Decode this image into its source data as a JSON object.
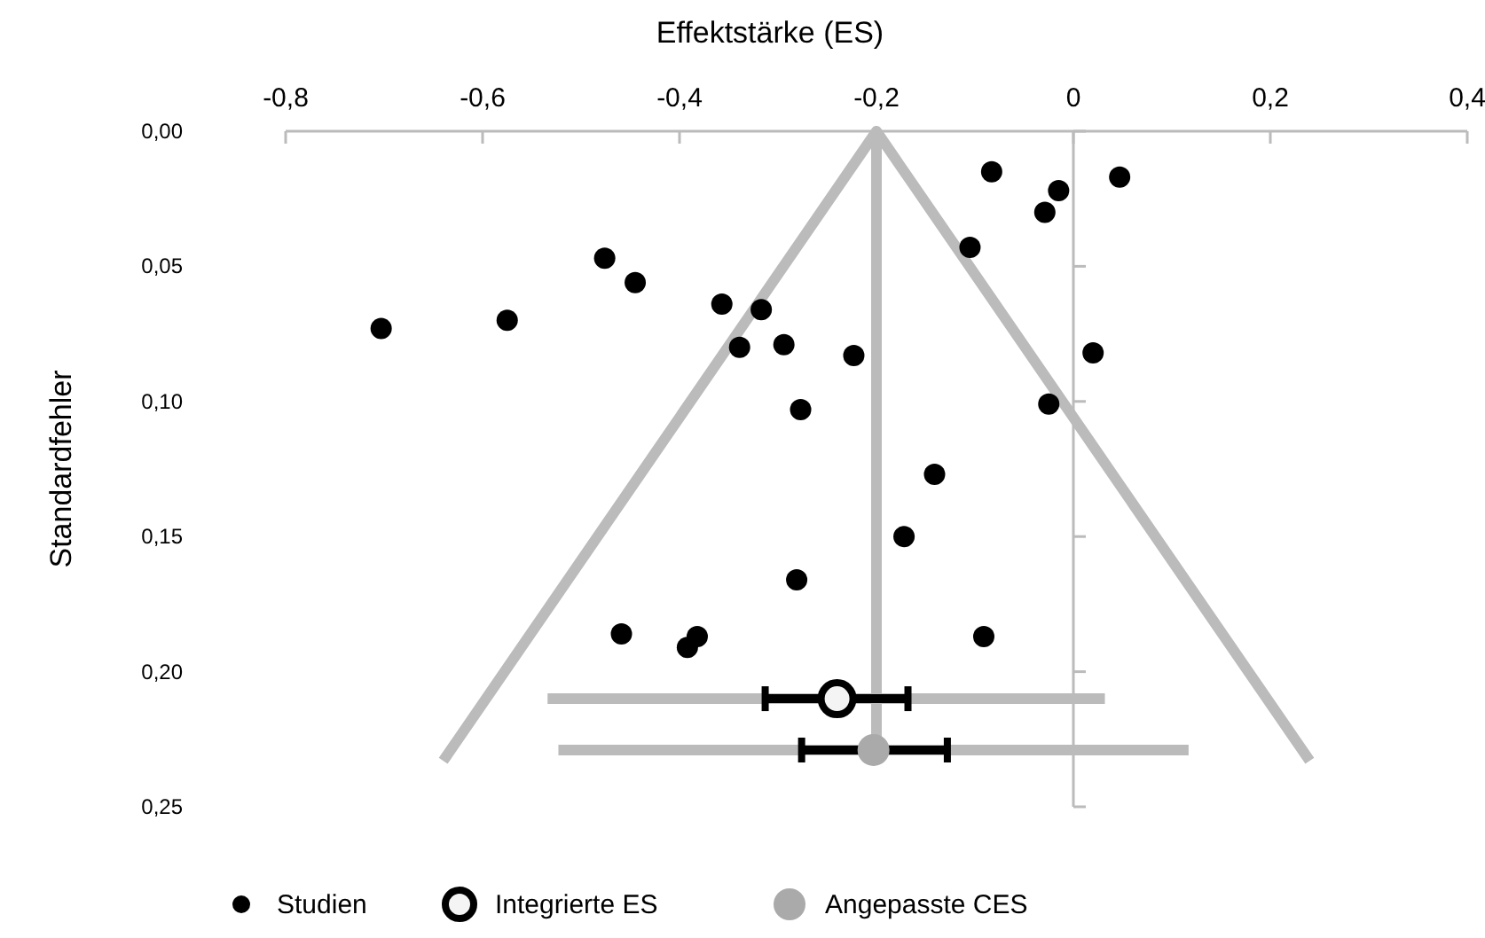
{
  "chart_data": {
    "type": "scatter",
    "xlabel": "Effektstärke (ES)",
    "ylabel": "Standardfehler",
    "xlim": [
      -0.8,
      0.4
    ],
    "xticks": [
      {
        "value": -0.8,
        "label": "-0,8"
      },
      {
        "value": -0.6,
        "label": "-0,6"
      },
      {
        "value": -0.4,
        "label": "-0,4"
      },
      {
        "value": -0.2,
        "label": "-0,2"
      },
      0,
      {
        "value": 0.2,
        "label": "0,2"
      },
      {
        "value": 0.4,
        "label": "0,4"
      }
    ],
    "ylim": [
      0.25,
      0
    ],
    "yticks": [
      {
        "value": 0,
        "label": "0,00"
      },
      {
        "value": 0.05,
        "label": "0,05"
      },
      {
        "value": 0.1,
        "label": "0,10"
      },
      {
        "value": 0.15,
        "label": "0,15"
      },
      {
        "value": 0.2,
        "label": "0,20"
      },
      {
        "value": 0.25,
        "label": "0,25"
      }
    ],
    "grid": false,
    "legend": "bottom",
    "series": [
      {
        "type": "line",
        "color": "#bbbbbb",
        "marker": "none",
        "x": [
          -0.64,
          -0.2,
          0.24
        ],
        "values": [
          0.233,
          0,
          0.233
        ]
      },
      {
        "type": "line",
        "color": "#bbbbbb",
        "marker": "none",
        "x": [
          -0.2,
          -0.2
        ],
        "values": [
          0,
          0.229
        ]
      },
      {
        "type": "line",
        "color": "#bbbbbb",
        "marker": "none",
        "x": [
          -0.534,
          0.032
        ],
        "values": [
          0.21,
          0.21
        ]
      },
      {
        "type": "line",
        "color": "#bbbbbb",
        "marker": "none",
        "x": [
          -0.523,
          0.117
        ],
        "values": [
          0.229,
          0.229
        ]
      },
      {
        "name": "Studien",
        "color": "#000000",
        "marker": "circle",
        "x": [
          -0.083,
          0.047,
          -0.015,
          -0.029,
          -0.105,
          -0.476,
          -0.445,
          -0.357,
          -0.317,
          -0.703,
          -0.575,
          -0.339,
          -0.294,
          -0.223,
          0.02,
          -0.277,
          -0.025,
          -0.141,
          -0.172,
          -0.281,
          -0.459,
          -0.382,
          -0.392,
          -0.091
        ],
        "values": [
          0.015,
          0.017,
          0.022,
          0.03,
          0.043,
          0.047,
          0.056,
          0.064,
          0.066,
          0.073,
          0.07,
          0.08,
          0.079,
          0.083,
          0.082,
          0.103,
          0.101,
          0.127,
          0.15,
          0.166,
          0.186,
          0.187,
          0.191,
          0.187
        ]
      },
      {
        "name": "Integrierte ES",
        "color": "#000000",
        "marker": "circle",
        "x": [
          -0.24
        ],
        "values": [
          0.21
        ],
        "xerrors": [
          [
            -0.313,
            -0.168
          ]
        ]
      },
      {
        "name": "Angepasste CES",
        "color": "#aaaaaa",
        "marker": "circle",
        "x": [
          -0.203
        ],
        "values": [
          0.229
        ],
        "xerrors": [
          [
            -0.276,
            -0.128
          ]
        ]
      }
    ]
  }
}
